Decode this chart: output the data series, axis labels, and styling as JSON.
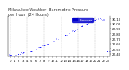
{
  "title": "Milwaukee Weather  Barometric Pressure\nper Hour  (24 Hours)",
  "bg_color": "#ffffff",
  "plot_bg": "#ffffff",
  "line_color": "#0000ff",
  "grid_color": "#888888",
  "ylim": [
    29.35,
    30.15
  ],
  "ylabel_values": [
    29.4,
    29.5,
    29.6,
    29.7,
    29.8,
    29.9,
    30.0,
    30.1
  ],
  "hours": [
    0,
    1,
    2,
    3,
    4,
    5,
    6,
    7,
    8,
    9,
    10,
    11,
    12,
    13,
    14,
    15,
    16,
    17,
    18,
    19,
    20,
    21,
    22,
    23
  ],
  "pressure": [
    29.38,
    29.37,
    29.4,
    29.42,
    29.44,
    29.46,
    29.5,
    29.54,
    29.57,
    29.6,
    29.65,
    29.7,
    29.74,
    29.78,
    29.82,
    29.86,
    29.9,
    29.95,
    30.0,
    30.05,
    30.08,
    30.1,
    30.08,
    29.45
  ],
  "title_fontsize": 3.5,
  "tick_fontsize": 2.8,
  "marker_size": 1.2,
  "legend_label": "Pressure",
  "legend_color": "#0000cc",
  "vgrid_positions": [
    0,
    4,
    8,
    12,
    16,
    20
  ]
}
